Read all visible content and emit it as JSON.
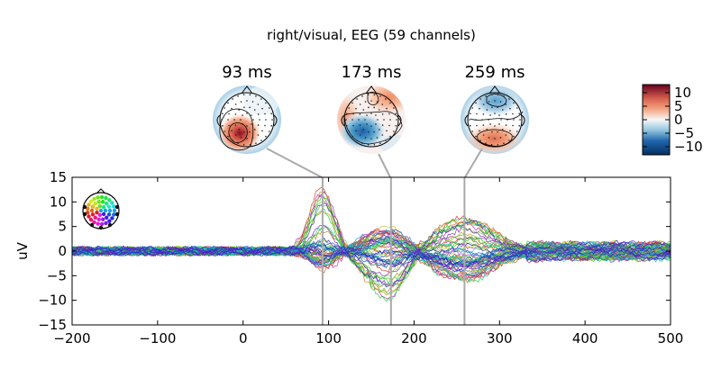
{
  "chart_data": {
    "type": "line",
    "title": "right/visual, EEG (59 channels)",
    "xlabel": "",
    "ylabel": "uV",
    "xlim": [
      -200,
      500
    ],
    "ylim": [
      -15,
      15
    ],
    "x_ticks": [
      "−200",
      "−100",
      "0",
      "100",
      "200",
      "300",
      "400",
      "500"
    ],
    "x_tick_values": [
      -200,
      -100,
      0,
      100,
      200,
      300,
      400,
      500
    ],
    "y_ticks": [
      "15",
      "10",
      "5",
      "0",
      "−5",
      "−10",
      "−15"
    ],
    "y_tick_values": [
      15,
      10,
      5,
      0,
      -5,
      -10,
      -15
    ],
    "grid": false,
    "n_channels": 59,
    "highlight_times_ms": [
      93,
      173,
      259
    ],
    "topomaps": [
      {
        "time_ms": 93,
        "label": "93 ms"
      },
      {
        "time_ms": 173,
        "label": "173 ms"
      },
      {
        "time_ms": 259,
        "label": "259 ms"
      }
    ],
    "colorbar": {
      "ticks": [
        "10",
        "5",
        "0",
        "−5",
        "−10"
      ],
      "tick_values": [
        10,
        5,
        0,
        -5,
        -10
      ],
      "range": [
        -13,
        13
      ],
      "colormap": "RdBu_r"
    },
    "channel_colormap": "spatial-position rainbow",
    "sensor_inset": true
  }
}
